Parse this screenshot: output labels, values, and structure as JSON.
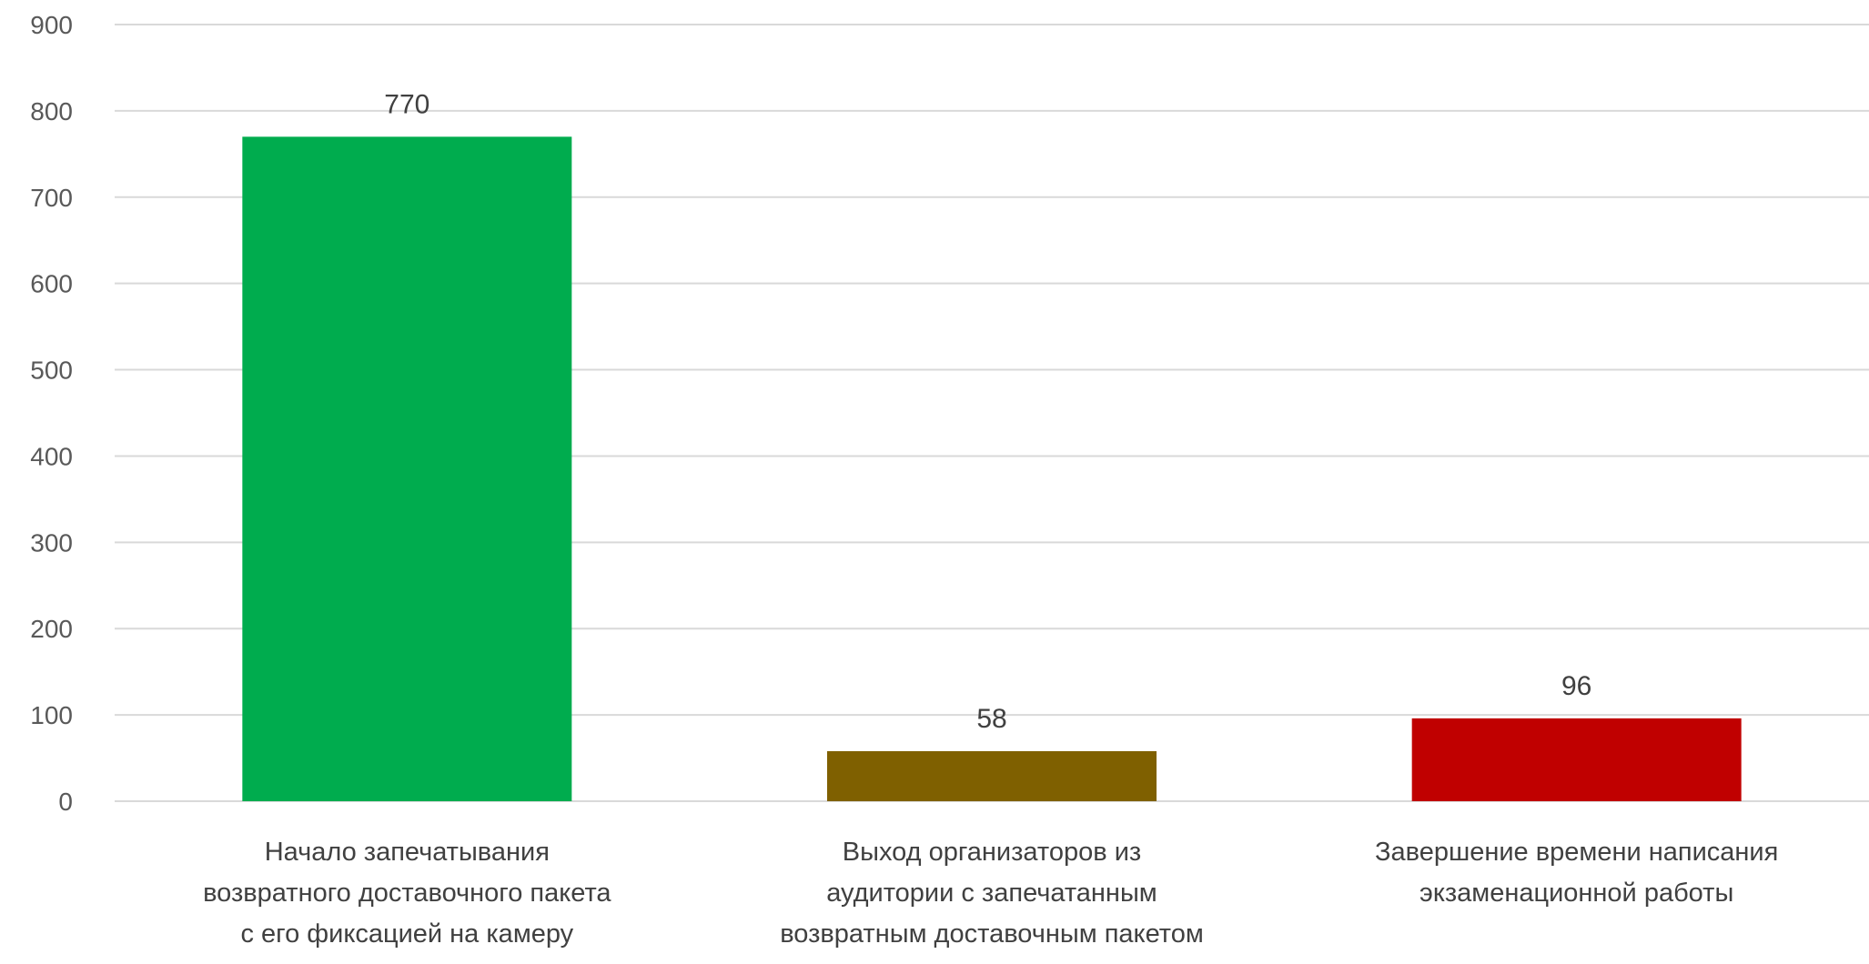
{
  "chart_data": {
    "type": "bar",
    "title": "",
    "xlabel": "",
    "ylabel": "",
    "ylim": [
      0,
      900
    ],
    "yticks": [
      0,
      100,
      200,
      300,
      400,
      500,
      600,
      700,
      800,
      900
    ],
    "grid": true,
    "legend": "none",
    "categories": [
      [
        "Начало запечатывания",
        "возвратного доставочного пакета",
        "с его фиксацией на камеру"
      ],
      [
        "Выход организаторов из",
        "аудитории с запечатанным",
        "возвратным доставочным пакетом"
      ],
      [
        "Завершение времени написания",
        "экзаменационной работы"
      ]
    ],
    "values": [
      770,
      58,
      96
    ],
    "data_labels": [
      "770",
      "58",
      "96"
    ],
    "colors": [
      "#00ac4e",
      "#7f6000",
      "#c00000"
    ]
  }
}
